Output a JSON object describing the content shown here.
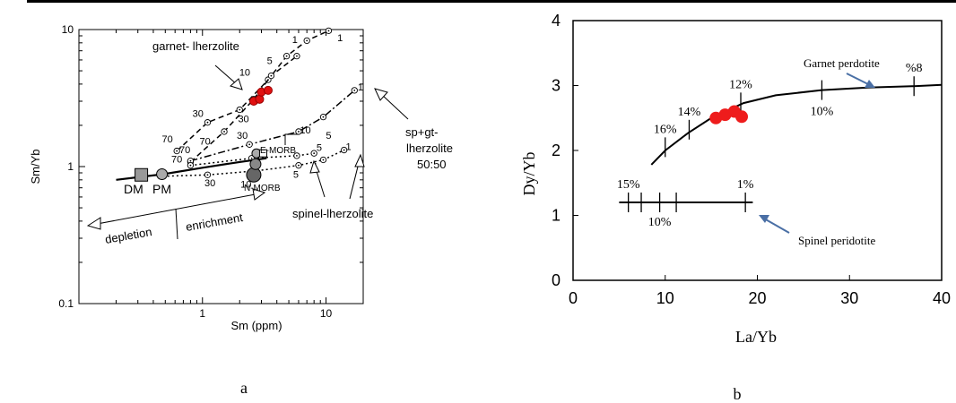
{
  "chart_data": [
    {
      "panel_label": "a",
      "type": "line",
      "xlabel": "Sm (ppm)",
      "ylabel": "Sm/Yb",
      "x_scale": "log",
      "y_scale": "log",
      "xlim": [
        0.1,
        20
      ],
      "ylim": [
        0.1,
        10
      ],
      "x_ticks": [
        {
          "v": 1,
          "label": "1"
        },
        {
          "v": 10,
          "label": "10"
        }
      ],
      "y_ticks": [
        {
          "v": 0.1,
          "label": "0.1"
        },
        {
          "v": 1,
          "label": "1"
        },
        {
          "v": 10,
          "label": "10"
        }
      ],
      "series": [
        {
          "name": "garnet- lherzolite",
          "style": "dashed",
          "points": [
            [
              0.62,
              1.3
            ],
            [
              1.1,
              2.1
            ],
            [
              2.0,
              2.6
            ],
            [
              3.4,
              4.3
            ],
            [
              4.8,
              6.4
            ],
            [
              7.0,
              8.3
            ],
            [
              10.5,
              9.8
            ]
          ],
          "tick_labels": [
            {
              "text": "70",
              "x": 0.52,
              "y": 1.5
            },
            {
              "text": "30",
              "x": 0.92,
              "y": 2.3
            },
            {
              "text": "10",
              "x": 2.2,
              "y": 4.6
            },
            {
              "text": "5",
              "x": 3.5,
              "y": 5.6
            },
            {
              "text": "1",
              "x": 5.6,
              "y": 8.0
            },
            {
              "text": "1",
              "x": 13.0,
              "y": 8.2
            }
          ]
        },
        {
          "name": "garnet- lherzolite (lower)",
          "style": "dashed",
          "points": [
            [
              0.8,
              1.08
            ],
            [
              1.5,
              1.8
            ],
            [
              2.6,
              3.1
            ],
            [
              3.6,
              4.6
            ],
            [
              5.8,
              6.4
            ]
          ],
          "tick_labels": [
            {
              "text": "70",
              "x": 1.05,
              "y": 1.45
            },
            {
              "text": "30",
              "x": 2.15,
              "y": 2.1
            }
          ]
        },
        {
          "name": "sp+gt- lherzolite 50:50",
          "style": "dash-dot",
          "points": [
            [
              0.8,
              1.1
            ],
            [
              2.4,
              1.45
            ],
            [
              6.0,
              1.8
            ],
            [
              9.5,
              2.3
            ],
            [
              17.0,
              3.6
            ]
          ],
          "tick_labels": [
            {
              "text": "70",
              "x": 0.72,
              "y": 1.25
            },
            {
              "text": "30",
              "x": 2.1,
              "y": 1.6
            },
            {
              "text": "10",
              "x": 6.8,
              "y": 1.75
            },
            {
              "text": "5",
              "x": 10.5,
              "y": 1.6
            },
            {
              "text": "1",
              "x": 19.0,
              "y": 3.6
            }
          ]
        },
        {
          "name": "spinel-lherzolite",
          "style": "dotted",
          "points": [
            [
              0.48,
              0.85
            ],
            [
              1.1,
              0.87
            ],
            [
              2.7,
              0.93
            ],
            [
              6.0,
              1.02
            ],
            [
              9.5,
              1.12
            ],
            [
              14.0,
              1.32
            ]
          ],
          "tick_labels": [
            {
              "text": "30",
              "x": 1.15,
              "y": 0.72
            },
            {
              "text": "10",
              "x": 2.25,
              "y": 0.7
            },
            {
              "text": "5",
              "x": 5.7,
              "y": 0.83
            },
            {
              "text": "1",
              "x": 8.2,
              "y": 0.95
            },
            {
              "text": "1",
              "x": 15.2,
              "y": 1.32
            }
          ]
        },
        {
          "name": "spinel-lherzolite (upper)",
          "style": "dotted",
          "points": [
            [
              0.8,
              1.02
            ],
            [
              2.5,
              1.15
            ],
            [
              5.8,
              1.2
            ],
            [
              8.0,
              1.25
            ]
          ],
          "tick_labels": [
            {
              "text": "70",
              "x": 0.62,
              "y": 1.07
            },
            {
              "text": "5",
              "x": 8.8,
              "y": 1.3
            }
          ]
        },
        {
          "name": "enrichment trend",
          "style": "solid",
          "points": [
            [
              0.2,
              0.8
            ],
            [
              0.48,
              0.88
            ],
            [
              1.0,
              0.98
            ],
            [
              2.0,
              1.08
            ],
            [
              3.3,
              1.15
            ]
          ]
        }
      ],
      "reference_points": [
        {
          "label": "DM",
          "x": 0.32,
          "y": 0.87,
          "marker": "square"
        },
        {
          "label": "PM",
          "x": 0.47,
          "y": 0.88,
          "marker": "circle"
        },
        {
          "label": "N-MORB",
          "x": 2.6,
          "y": 0.87,
          "marker": "circle-dark"
        },
        {
          "label": "E-MORB",
          "x": 3.1,
          "y": 1.25,
          "marker": "square-open"
        }
      ],
      "samples": [
        {
          "x": 2.6,
          "y": 3.0
        },
        {
          "x": 2.9,
          "y": 3.1
        },
        {
          "x": 3.0,
          "y": 3.5
        },
        {
          "x": 3.4,
          "y": 3.6
        }
      ],
      "annotations": [
        "garnet- lherzolite",
        "sp+gt-",
        "lherzolite",
        "50:50",
        "spinel-lherzolite",
        "depletion",
        "enrichment",
        "DM",
        "PM",
        "N-MORB",
        "E-MORB"
      ]
    },
    {
      "panel_label": "b",
      "type": "line",
      "xlabel": "La/Yb",
      "ylabel": "Dy/Yb",
      "xlim": [
        0,
        40
      ],
      "ylim": [
        0,
        4
      ],
      "x_ticks": [
        0,
        10,
        20,
        30,
        40
      ],
      "y_ticks": [
        0,
        1,
        2,
        3,
        4
      ],
      "series": [
        {
          "name": "Garnet perdotite",
          "style": "solid",
          "points": [
            [
              8.5,
              1.78
            ],
            [
              10,
              2.0
            ],
            [
              12.5,
              2.27
            ],
            [
              15,
              2.5
            ],
            [
              18.5,
              2.73
            ],
            [
              22,
              2.85
            ],
            [
              27,
              2.93
            ],
            [
              32,
              2.97
            ],
            [
              37,
              2.99
            ],
            [
              40,
              3.01
            ]
          ],
          "melt_ticks": [
            {
              "x": 10.0,
              "y": 2.05,
              "label": "16%"
            },
            {
              "x": 12.6,
              "y": 2.32,
              "label": "14%"
            },
            {
              "x": 18.2,
              "y": 2.74,
              "label": "12%"
            },
            {
              "x": 27.0,
              "y": 2.93,
              "label": "10%"
            },
            {
              "x": 37.0,
              "y": 2.99,
              "label": "%8"
            }
          ]
        },
        {
          "name": "Spinel peridotite",
          "style": "solid",
          "points": [
            [
              5,
              1.2
            ],
            [
              19.5,
              1.2
            ]
          ],
          "melt_ticks": [
            {
              "x": 6.0,
              "y": 1.2,
              "label": "15%"
            },
            {
              "x": 7.4,
              "y": 1.2,
              "label": ""
            },
            {
              "x": 9.4,
              "y": 1.2,
              "label": "10%"
            },
            {
              "x": 11.2,
              "y": 1.2,
              "label": ""
            },
            {
              "x": 18.7,
              "y": 1.2,
              "label": "1%"
            }
          ]
        }
      ],
      "samples": [
        {
          "x": 15.5,
          "y": 2.5
        },
        {
          "x": 16.5,
          "y": 2.55
        },
        {
          "x": 17.5,
          "y": 2.6
        },
        {
          "x": 18.3,
          "y": 2.52
        }
      ],
      "annotations": [
        "Garnet perdotite",
        "Spinel peridotite"
      ]
    }
  ]
}
